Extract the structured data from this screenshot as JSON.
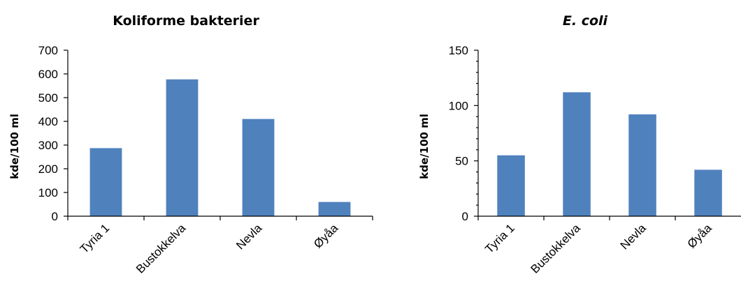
{
  "chart_data": [
    {
      "type": "bar",
      "title": "Koliforme bakterier",
      "ylabel": "kde/100 ml",
      "xlabel": "",
      "categories": [
        "Tyria 1",
        "Bustokkelva",
        "Nevla",
        "Øyåa"
      ],
      "values": [
        287,
        577,
        410,
        60
      ],
      "ylim": [
        0,
        700
      ],
      "yticks": [
        0,
        100,
        200,
        300,
        400,
        500,
        600,
        700
      ],
      "minor_ticks": 0,
      "bar_color": "#4f81bd",
      "grid": false,
      "legend": "none"
    },
    {
      "type": "bar",
      "title": "E. coli",
      "ylabel": "kde/100 ml",
      "xlabel": "",
      "categories": [
        "Tyria 1",
        "Bustokkelva",
        "Nevla",
        "Øyåa"
      ],
      "values": [
        55,
        112,
        92,
        42
      ],
      "ylim": [
        0,
        150
      ],
      "yticks": [
        0,
        50,
        100,
        150
      ],
      "minor_ticks": 4,
      "bar_color": "#4f81bd",
      "grid": false,
      "legend": "none"
    }
  ]
}
